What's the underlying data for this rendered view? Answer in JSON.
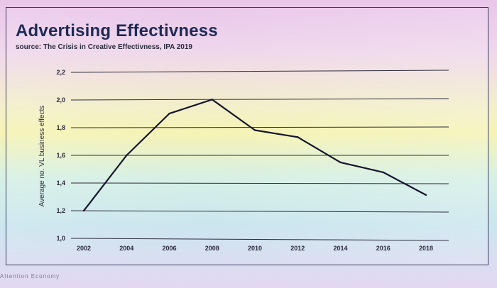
{
  "chart_data": {
    "type": "line",
    "title": "Advertising Effectivness",
    "subtitle": "source: The Crisis in Creative Effectivness, IPA 2019",
    "xlabel": "",
    "ylabel": "Average no. VL business effects",
    "categories": [
      "2002",
      "2004",
      "2006",
      "2008",
      "2010",
      "2012",
      "2014",
      "2016",
      "2018"
    ],
    "values": [
      1.2,
      1.6,
      1.9,
      2.0,
      1.78,
      1.73,
      1.55,
      1.48,
      1.32
    ],
    "ylim": [
      1.0,
      2.2
    ],
    "yticks": [
      1.0,
      1.2,
      1.4,
      1.6,
      1.8,
      2.0,
      2.2
    ],
    "ytick_labels": [
      "1,0",
      "1,2",
      "1,4",
      "1,6",
      "1,8",
      "2,0",
      "2,2"
    ],
    "grid": true,
    "line_color": "#15152b"
  },
  "footer": "Attention Economy"
}
